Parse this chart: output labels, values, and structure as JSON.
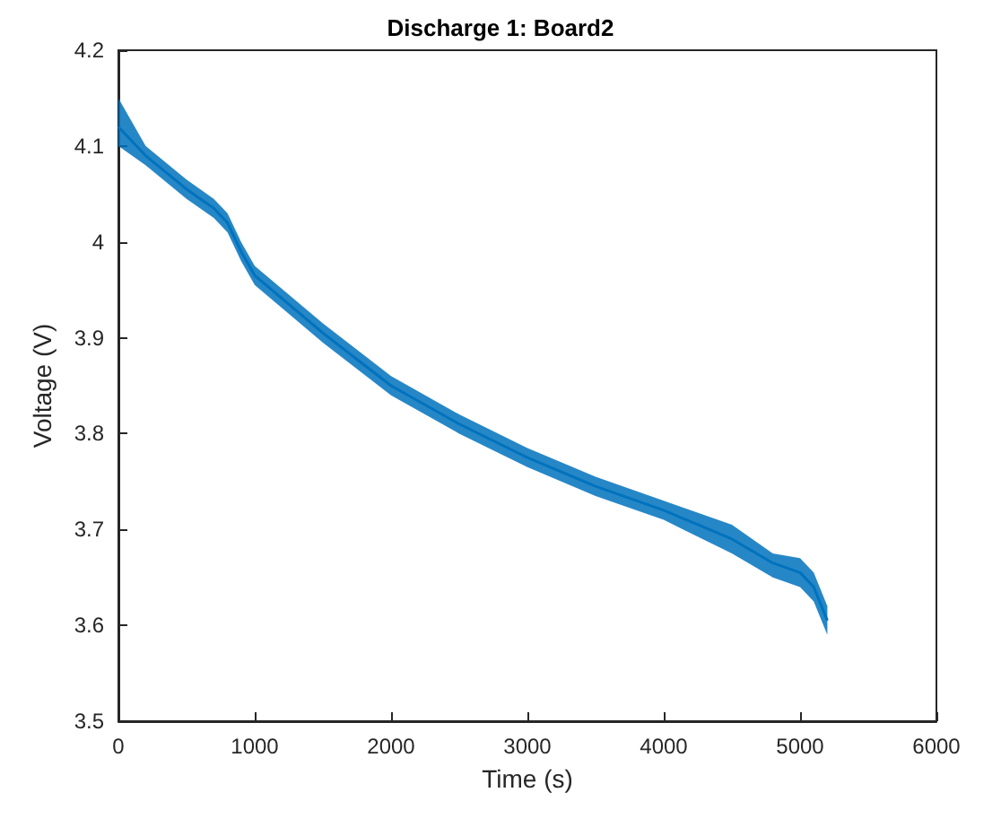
{
  "chart_data": {
    "type": "line",
    "title": "Discharge 1: Board2",
    "xlabel": "Time (s)",
    "ylabel": "Voltage (V)",
    "xlim": [
      0,
      6000
    ],
    "xticks": [
      0,
      1000,
      2000,
      3000,
      4000,
      5000,
      6000
    ],
    "ylim": [
      3.5,
      4.2
    ],
    "yticks": [
      3.5,
      3.6,
      3.7,
      3.8,
      3.9,
      4,
      4.1,
      4.2
    ],
    "grid": false,
    "series": [
      {
        "color": "#0072bd",
        "x": [
          0,
          200,
          500,
          700,
          800,
          900,
          1000,
          1500,
          2000,
          2500,
          3000,
          3500,
          4000,
          4500,
          4800,
          5000,
          5100,
          5200
        ],
        "values": [
          4.12,
          4.09,
          4.055,
          4.035,
          4.02,
          3.99,
          3.965,
          3.905,
          3.85,
          3.81,
          3.775,
          3.745,
          3.72,
          3.69,
          3.665,
          3.655,
          3.64,
          3.605
        ],
        "lower": [
          4.1,
          4.08,
          4.045,
          4.025,
          4.01,
          3.98,
          3.955,
          3.895,
          3.84,
          3.8,
          3.765,
          3.735,
          3.71,
          3.675,
          3.65,
          3.64,
          3.625,
          3.59
        ],
        "upper": [
          4.15,
          4.1,
          4.065,
          4.045,
          4.03,
          4,
          3.975,
          3.915,
          3.86,
          3.82,
          3.785,
          3.755,
          3.73,
          3.705,
          3.675,
          3.67,
          3.655,
          3.62
        ]
      }
    ]
  }
}
